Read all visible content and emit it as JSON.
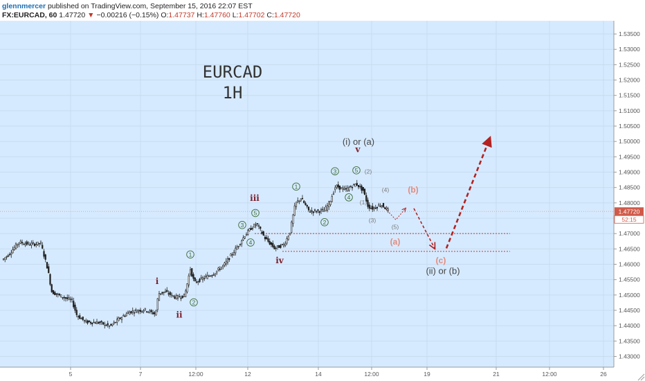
{
  "header": {
    "user": "glennmercer",
    "published": "published on TradingView.com, September 15, 2016 22:07 EST",
    "symbol": "FX:EURCAD, 60",
    "last": "1.47720",
    "arrow": "▼",
    "change": "−0.00216 (−0.15%)",
    "o_label": "O:",
    "o_value": "1.47737",
    "h_label": "H:",
    "h_value": "1.47760",
    "l_label": "L:",
    "l_value": "1.47702",
    "c_label": "C:",
    "c_value": "1.47720"
  },
  "chart_data": {
    "type": "candlestick",
    "title": "EURCAD",
    "subtitle": "1H",
    "price_axis_side": "right",
    "ylim": [
      1.4265,
      1.5393
    ],
    "y_ticks": [
      1.43,
      1.435,
      1.44,
      1.445,
      1.45,
      1.455,
      1.46,
      1.465,
      1.47,
      1.475,
      1.48,
      1.485,
      1.49,
      1.495,
      1.5,
      1.505,
      1.51,
      1.515,
      1.52,
      1.525,
      1.53,
      1.535
    ],
    "y_tick_labels": [
      "1.43000",
      "1.43500",
      "1.44000",
      "1.44500",
      "1.45000",
      "1.45500",
      "1.46000",
      "1.46500",
      "1.47000",
      "1.47500",
      "1.48000",
      "1.48500",
      "1.49000",
      "1.49500",
      "1.50000",
      "1.50500",
      "1.51000",
      "1.51500",
      "1.52000",
      "1.52500",
      "1.53000",
      "1.53500"
    ],
    "x_ticks": [
      {
        "label": "5",
        "bar": 102
      },
      {
        "label": "7",
        "bar": 203
      },
      {
        "label": "12:00",
        "bar": 283
      },
      {
        "label": "12",
        "bar": 358
      },
      {
        "label": "14",
        "bar": 460
      },
      {
        "label": "12:00",
        "bar": 537
      },
      {
        "label": "19",
        "bar": 617
      },
      {
        "label": "21",
        "bar": 717
      },
      {
        "label": "12:00",
        "bar": 794
      },
      {
        "label": "26",
        "bar": 872
      }
    ],
    "price_series": [
      {
        "bar": 5,
        "price": 1.4615
      },
      {
        "bar": 15,
        "price": 1.4635
      },
      {
        "bar": 28,
        "price": 1.4672
      },
      {
        "bar": 45,
        "price": 1.4665
      },
      {
        "bar": 60,
        "price": 1.4668
      },
      {
        "bar": 70,
        "price": 1.4585
      },
      {
        "bar": 76,
        "price": 1.451
      },
      {
        "bar": 90,
        "price": 1.4495
      },
      {
        "bar": 105,
        "price": 1.4482
      },
      {
        "bar": 112,
        "price": 1.4435
      },
      {
        "bar": 125,
        "price": 1.4412
      },
      {
        "bar": 145,
        "price": 1.441
      },
      {
        "bar": 160,
        "price": 1.4398
      },
      {
        "bar": 175,
        "price": 1.4425
      },
      {
        "bar": 188,
        "price": 1.4445
      },
      {
        "bar": 210,
        "price": 1.4452
      },
      {
        "bar": 226,
        "price": 1.4438
      },
      {
        "bar": 230,
        "price": 1.4505
      },
      {
        "bar": 240,
        "price": 1.451
      },
      {
        "bar": 255,
        "price": 1.4492
      },
      {
        "bar": 268,
        "price": 1.4498
      },
      {
        "bar": 276,
        "price": 1.4585
      },
      {
        "bar": 282,
        "price": 1.454
      },
      {
        "bar": 295,
        "price": 1.4555
      },
      {
        "bar": 310,
        "price": 1.457
      },
      {
        "bar": 325,
        "price": 1.4598
      },
      {
        "bar": 345,
        "price": 1.466
      },
      {
        "bar": 355,
        "price": 1.4695
      },
      {
        "bar": 364,
        "price": 1.4718
      },
      {
        "bar": 372,
        "price": 1.4732
      },
      {
        "bar": 384,
        "price": 1.4685
      },
      {
        "bar": 398,
        "price": 1.4652
      },
      {
        "bar": 412,
        "price": 1.4665
      },
      {
        "bar": 420,
        "price": 1.4705
      },
      {
        "bar": 428,
        "price": 1.4798
      },
      {
        "bar": 436,
        "price": 1.4815
      },
      {
        "bar": 448,
        "price": 1.4772
      },
      {
        "bar": 470,
        "price": 1.4775
      },
      {
        "bar": 478,
        "price": 1.4805
      },
      {
        "bar": 486,
        "price": 1.4855
      },
      {
        "bar": 500,
        "price": 1.4842
      },
      {
        "bar": 516,
        "price": 1.4862
      },
      {
        "bar": 526,
        "price": 1.484
      },
      {
        "bar": 533,
        "price": 1.4788
      },
      {
        "bar": 540,
        "price": 1.4782
      },
      {
        "bar": 552,
        "price": 1.4795
      },
      {
        "bar": 562,
        "price": 1.4775
      }
    ],
    "current_price": 1.4772,
    "price_label": "1.47720",
    "timer_label": "52:15",
    "levels": [
      {
        "price": 1.47,
        "from_bar": 368,
        "to_bar": 737
      },
      {
        "price": 1.4642,
        "from_bar": 408,
        "to_bar": 737
      }
    ],
    "wave_labels": [
      {
        "text": "i",
        "bar": 227,
        "price": 1.4545,
        "style": "roman-bold"
      },
      {
        "text": "ii",
        "bar": 259,
        "price": 1.4435,
        "style": "roman-bold"
      },
      {
        "text": "iii",
        "bar": 368,
        "price": 1.4815,
        "style": "roman-bold"
      },
      {
        "text": "iv",
        "bar": 404,
        "price": 1.4612,
        "style": "roman-bold"
      },
      {
        "text": "v",
        "bar": 517,
        "price": 1.4975,
        "style": "roman-bold"
      },
      {
        "text": "1",
        "bar": 275,
        "price": 1.4632,
        "style": "circled"
      },
      {
        "text": "2",
        "bar": 280,
        "price": 1.4476,
        "style": "circled"
      },
      {
        "text": "3",
        "bar": 350,
        "price": 1.4728,
        "style": "circled"
      },
      {
        "text": "4",
        "bar": 362,
        "price": 1.4671,
        "style": "circled"
      },
      {
        "text": "5",
        "bar": 369,
        "price": 1.4767,
        "style": "circled"
      },
      {
        "text": "1",
        "bar": 428,
        "price": 1.4853,
        "style": "circled"
      },
      {
        "text": "2",
        "bar": 469,
        "price": 1.4737,
        "style": "circled"
      },
      {
        "text": "3",
        "bar": 484,
        "price": 1.4903,
        "style": "circled"
      },
      {
        "text": "4",
        "bar": 504,
        "price": 1.4818,
        "style": "circled"
      },
      {
        "text": "5",
        "bar": 515,
        "price": 1.4906,
        "style": "circled"
      },
      {
        "text": "(1)",
        "bar": 525,
        "price": 1.4802,
        "style": "small"
      },
      {
        "text": "(2)",
        "bar": 532,
        "price": 1.4902,
        "style": "small"
      },
      {
        "text": "(3)",
        "bar": 538,
        "price": 1.4743,
        "style": "small"
      },
      {
        "text": "(4)",
        "bar": 557,
        "price": 1.4843,
        "style": "small"
      },
      {
        "text": "(5)",
        "bar": 571,
        "price": 1.4722,
        "style": "small"
      },
      {
        "text": "(a)",
        "bar": 571,
        "price": 1.4673,
        "style": "salmon"
      },
      {
        "text": "(b)",
        "bar": 597,
        "price": 1.4843,
        "style": "salmon"
      },
      {
        "text": "(c)",
        "bar": 637,
        "price": 1.4612,
        "style": "salmon"
      },
      {
        "text": "(i) or (a)",
        "bar": 518,
        "price": 1.4998,
        "style": "note"
      },
      {
        "text": "(ii) or (b)",
        "bar": 640,
        "price": 1.4578,
        "style": "note"
      }
    ],
    "projections": [
      {
        "points": [
          [
            554,
            1.4788
          ],
          [
            572,
            1.4745
          ],
          [
            586,
            1.4782
          ]
        ],
        "style": "thin"
      },
      {
        "points": [
          [
            598,
            1.4782
          ],
          [
            628,
            1.4652
          ]
        ],
        "style": "medium"
      },
      {
        "points": [
          [
            645,
            1.4652
          ],
          [
            708,
            1.5012
          ]
        ],
        "style": "thick"
      }
    ]
  }
}
